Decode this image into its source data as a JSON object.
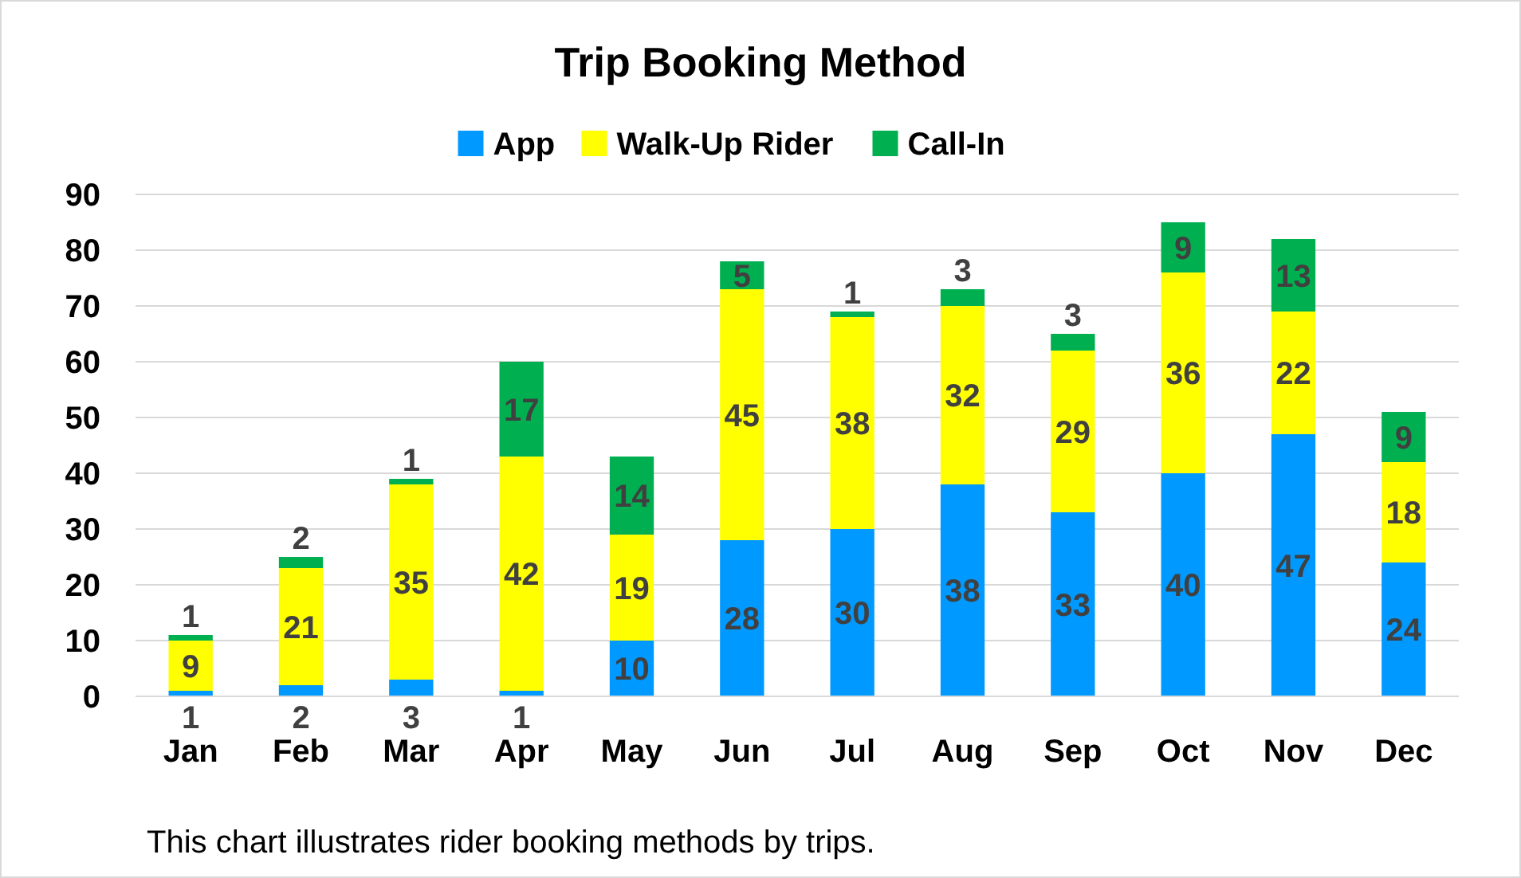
{
  "chart_data": {
    "type": "bar",
    "title": "Trip Booking Method",
    "stacked": true,
    "data_labels": true,
    "legend": "top",
    "grid": "y",
    "categories": [
      "Jan",
      "Feb",
      "Mar",
      "Apr",
      "May",
      "Jun",
      "Jul",
      "Aug",
      "Sep",
      "Oct",
      "Nov",
      "Dec"
    ],
    "series": [
      {
        "name": "App",
        "color": "#0099ff",
        "values": [
          1,
          2,
          3,
          1,
          10,
          28,
          30,
          38,
          33,
          40,
          47,
          24
        ]
      },
      {
        "name": "Walk-Up Rider",
        "color": "#ffff00",
        "values": [
          9,
          21,
          35,
          42,
          19,
          45,
          38,
          32,
          29,
          36,
          22,
          18
        ]
      },
      {
        "name": "Call-In",
        "color": "#00b050",
        "values": [
          1,
          2,
          1,
          17,
          14,
          5,
          1,
          3,
          3,
          9,
          13,
          9
        ]
      }
    ],
    "ylim": [
      0,
      90
    ],
    "yticks": [
      0,
      10,
      20,
      30,
      40,
      50,
      60,
      70,
      80,
      90
    ],
    "annotations": [
      "This chart illustrates rider booking methods by trips."
    ]
  }
}
